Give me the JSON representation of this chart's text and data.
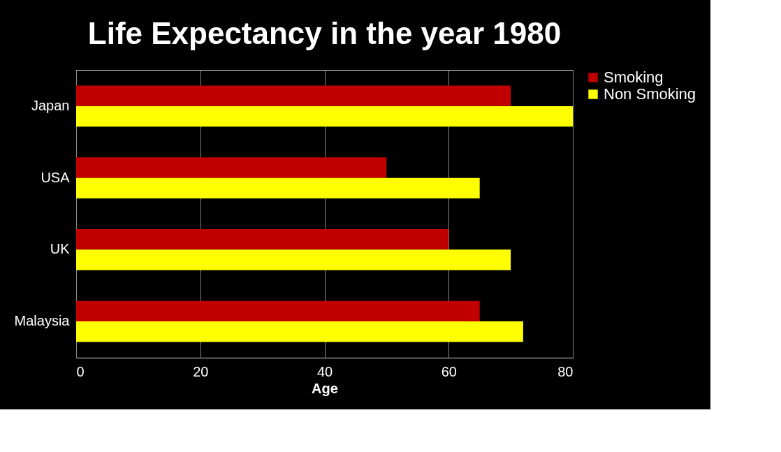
{
  "chart_data": {
    "type": "bar",
    "orientation": "horizontal",
    "title": "Life Expectancy in the year 1980",
    "xlabel": "Age",
    "categories": [
      "Japan",
      "USA",
      "UK",
      "Malaysia"
    ],
    "series": [
      {
        "name": "Smoking",
        "color": "#c00000",
        "values": [
          70,
          50,
          60,
          65
        ]
      },
      {
        "name": "Non Smoking",
        "color": "#ffff00",
        "values": [
          80,
          65,
          70,
          72
        ]
      }
    ],
    "xlim": [
      0,
      80
    ],
    "xticks": [
      0,
      20,
      40,
      60,
      80
    ],
    "grid": "x",
    "legend": "right"
  }
}
